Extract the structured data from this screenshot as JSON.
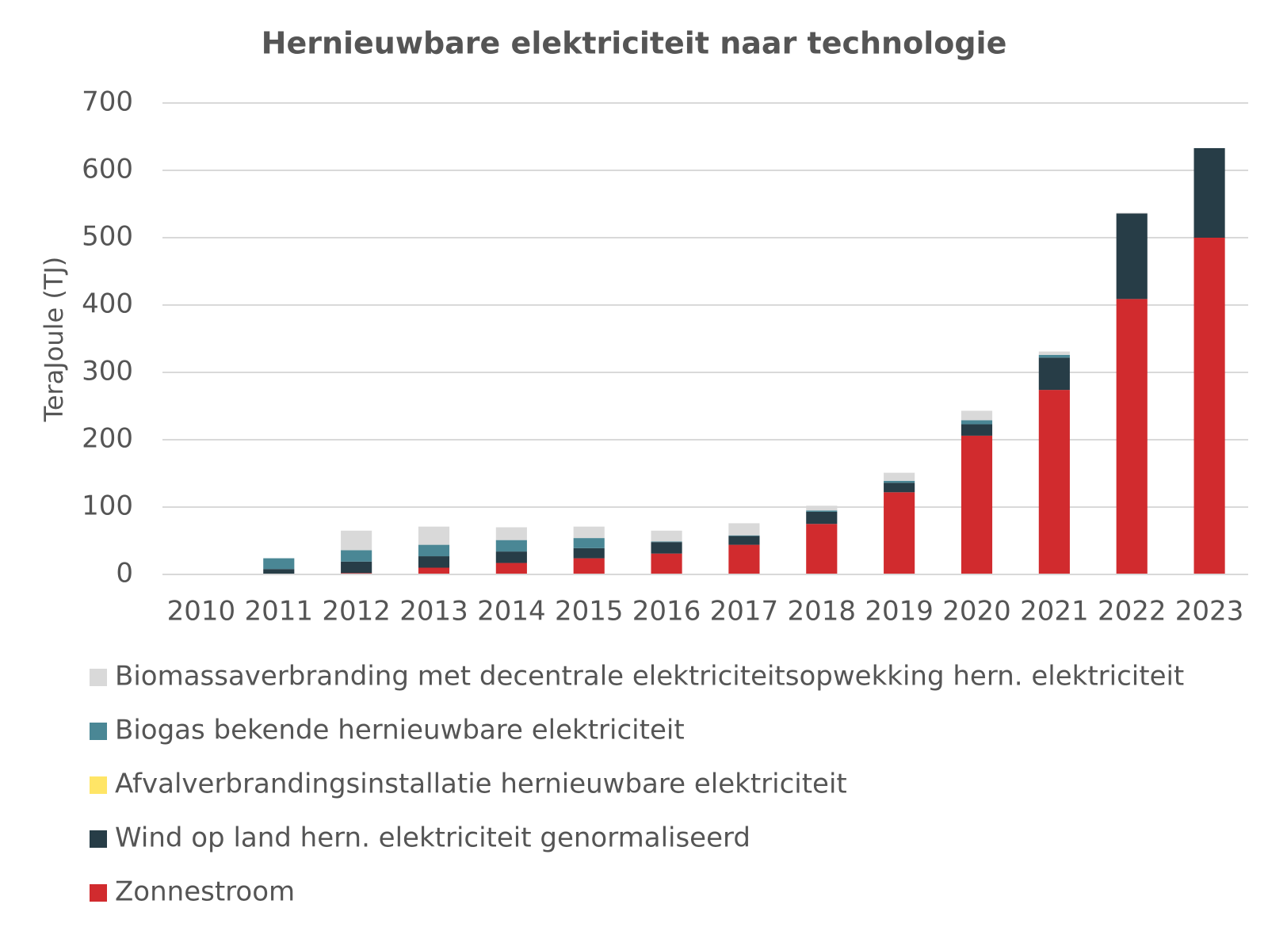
{
  "chart_data": {
    "type": "stacked-bar",
    "title": "Hernieuwbare elektriciteit naar technologie",
    "y_label": "TeraJoule (TJ)",
    "categories": [
      "2010",
      "2011",
      "2012",
      "2013",
      "2014",
      "2015",
      "2016",
      "2017",
      "2018",
      "2019",
      "2020",
      "2021",
      "2022",
      "2023"
    ],
    "series": [
      {
        "name": "Biomassaverbranding met decentrale elektriciteitsopwekking hern. elektriciteit",
        "color": "#d9d9d9",
        "values": [
          0,
          0,
          29,
          27,
          19,
          17,
          16,
          18,
          7,
          12,
          14,
          5,
          1,
          0
        ]
      },
      {
        "name": "Biogas bekende hernieuwbare elektriciteit",
        "color": "#4a8795",
        "values": [
          0,
          16,
          17,
          17,
          17,
          15,
          1,
          1,
          2,
          3,
          6,
          4,
          0,
          0
        ]
      },
      {
        "name": "Afvalverbrandingsinstallatie hernieuwbare elektriciteit",
        "color": "#ffe566",
        "values": [
          0,
          0,
          0,
          0,
          0,
          0,
          0,
          0,
          0,
          0,
          0,
          0,
          0,
          0
        ]
      },
      {
        "name": "Wind op land hern. elektriciteit genormaliseerd",
        "color": "#273d47",
        "values": [
          0,
          8,
          17,
          17,
          17,
          15,
          17,
          13,
          18,
          14,
          17,
          48,
          127,
          133
        ]
      },
      {
        "name": "Zonnestroom",
        "color": "#d12b2e",
        "values": [
          0,
          0,
          2,
          10,
          17,
          24,
          31,
          44,
          75,
          122,
          206,
          274,
          409,
          500
        ]
      }
    ],
    "ylim": [
      0,
      700
    ],
    "yticks": [
      0,
      100,
      200,
      300,
      400,
      500,
      600,
      700
    ],
    "grid": true
  }
}
